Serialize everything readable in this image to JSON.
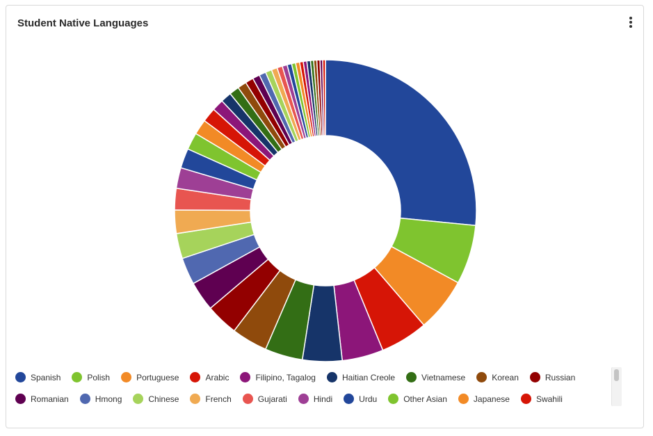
{
  "card": {
    "title": "Student Native Languages"
  },
  "chart_data": {
    "type": "pie",
    "donut": true,
    "title": "Student Native Languages",
    "legend_position": "bottom",
    "slices": [
      {
        "name": "Spanish",
        "value": 27.6,
        "color": "#22479a"
      },
      {
        "name": "Polish",
        "value": 6.6,
        "color": "#7fc42f"
      },
      {
        "name": "Portuguese",
        "value": 6.0,
        "color": "#f28a26"
      },
      {
        "name": "Arabic",
        "value": 5.3,
        "color": "#d61506"
      },
      {
        "name": "Filipino, Tagalog",
        "value": 4.6,
        "color": "#8c1679"
      },
      {
        "name": "Haitian Creole",
        "value": 4.4,
        "color": "#163469"
      },
      {
        "name": "Vietnamese",
        "value": 4.2,
        "color": "#336e15"
      },
      {
        "name": "Korean",
        "value": 4.0,
        "color": "#8f4a0c"
      },
      {
        "name": "Russian",
        "value": 3.6,
        "color": "#930000"
      },
      {
        "name": "Romanian",
        "value": 3.3,
        "color": "#5f0051"
      },
      {
        "name": "Hmong",
        "value": 3.0,
        "color": "#5068b0"
      },
      {
        "name": "Chinese",
        "value": 2.8,
        "color": "#a6d35b"
      },
      {
        "name": "French",
        "value": 2.6,
        "color": "#f0aa52"
      },
      {
        "name": "Gujarati",
        "value": 2.4,
        "color": "#e85550"
      },
      {
        "name": "Hindi",
        "value": 2.3,
        "color": "#9e3f95"
      },
      {
        "name": "Urdu",
        "value": 2.2,
        "color": "#22479a"
      },
      {
        "name": "Other Asian",
        "value": 1.9,
        "color": "#7fc42f"
      },
      {
        "name": "Japanese",
        "value": 1.7,
        "color": "#f28a26"
      },
      {
        "name": "Swahili",
        "value": 1.6,
        "color": "#d61506"
      },
      {
        "name": "",
        "value": 1.3,
        "color": "#8c1679"
      },
      {
        "name": "",
        "value": 1.2,
        "color": "#163469"
      },
      {
        "name": "",
        "value": 1.1,
        "color": "#336e15"
      },
      {
        "name": "",
        "value": 1.0,
        "color": "#8f4a0c"
      },
      {
        "name": "",
        "value": 0.9,
        "color": "#930000"
      },
      {
        "name": "",
        "value": 0.8,
        "color": "#5f0051"
      },
      {
        "name": "",
        "value": 0.75,
        "color": "#5068b0"
      },
      {
        "name": "",
        "value": 0.7,
        "color": "#a6d35b"
      },
      {
        "name": "",
        "value": 0.65,
        "color": "#f0aa52"
      },
      {
        "name": "",
        "value": 0.6,
        "color": "#e85550"
      },
      {
        "name": "",
        "value": 0.55,
        "color": "#9e3f95"
      },
      {
        "name": "",
        "value": 0.5,
        "color": "#22479a"
      },
      {
        "name": "",
        "value": 0.45,
        "color": "#7fc42f"
      },
      {
        "name": "",
        "value": 0.45,
        "color": "#f28a26"
      },
      {
        "name": "",
        "value": 0.4,
        "color": "#d61506"
      },
      {
        "name": "",
        "value": 0.4,
        "color": "#8c1679"
      },
      {
        "name": "",
        "value": 0.4,
        "color": "#163469"
      },
      {
        "name": "",
        "value": 0.35,
        "color": "#336e15"
      },
      {
        "name": "",
        "value": 0.35,
        "color": "#8f4a0c"
      },
      {
        "name": "",
        "value": 0.35,
        "color": "#930000"
      },
      {
        "name": "",
        "value": 0.3,
        "color": "#5f0051"
      },
      {
        "name": "",
        "value": 0.3,
        "color": "#d61506"
      }
    ],
    "legend_rows": [
      [
        "Spanish",
        "Polish",
        "Portuguese",
        "Arabic",
        "Filipino, Tagalog",
        "Haitian Creole",
        "Vietnamese",
        "Korean",
        "Russian"
      ],
      [
        "Romanian",
        "Hmong",
        "Chinese",
        "French",
        "Gujarati",
        "Hindi",
        "Urdu",
        "Other Asian",
        "Japanese",
        "Swahili"
      ]
    ]
  }
}
